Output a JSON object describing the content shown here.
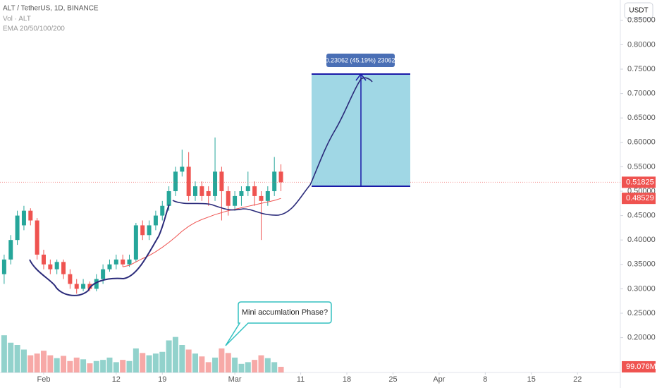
{
  "chart_data": {
    "type": "candlestick",
    "title": "ALT / TetherUS, 1D, BINANCE",
    "indicators": [
      "Vol · ALT",
      "EMA 20/50/100/200"
    ],
    "currency": "USDT",
    "x": [
      -6,
      -5,
      -4,
      -3,
      -2,
      -1,
      0,
      1,
      2,
      3,
      4,
      5,
      6,
      7,
      8,
      9,
      10,
      11,
      12,
      13,
      14,
      15,
      16,
      17,
      18,
      19,
      20,
      21,
      22,
      23,
      24,
      25,
      26,
      27,
      28,
      29,
      30,
      31,
      32,
      33,
      34,
      35,
      36
    ],
    "open": [
      0.33,
      0.36,
      0.4,
      0.43,
      0.46,
      0.44,
      0.37,
      0.35,
      0.34,
      0.355,
      0.33,
      0.31,
      0.3,
      0.31,
      0.3,
      0.32,
      0.34,
      0.35,
      0.36,
      0.35,
      0.36,
      0.43,
      0.41,
      0.43,
      0.45,
      0.47,
      0.5,
      0.54,
      0.55,
      0.49,
      0.51,
      0.5,
      0.49,
      0.54,
      0.5,
      0.47,
      0.49,
      0.5,
      0.51,
      0.49,
      0.48,
      0.5,
      0.54
    ],
    "high": [
      0.37,
      0.41,
      0.46,
      0.47,
      0.465,
      0.445,
      0.38,
      0.36,
      0.36,
      0.36,
      0.34,
      0.32,
      0.32,
      0.315,
      0.33,
      0.35,
      0.36,
      0.37,
      0.37,
      0.37,
      0.435,
      0.44,
      0.44,
      0.46,
      0.48,
      0.51,
      0.55,
      0.585,
      0.58,
      0.52,
      0.52,
      0.51,
      0.61,
      0.55,
      0.51,
      0.5,
      0.51,
      0.54,
      0.52,
      0.5,
      0.51,
      0.57,
      0.555
    ],
    "low": [
      0.31,
      0.35,
      0.39,
      0.42,
      0.43,
      0.36,
      0.34,
      0.33,
      0.33,
      0.32,
      0.3,
      0.29,
      0.295,
      0.295,
      0.295,
      0.31,
      0.335,
      0.34,
      0.345,
      0.345,
      0.355,
      0.4,
      0.4,
      0.42,
      0.44,
      0.46,
      0.49,
      0.53,
      0.48,
      0.48,
      0.48,
      0.47,
      0.48,
      0.44,
      0.45,
      0.46,
      0.47,
      0.49,
      0.47,
      0.4,
      0.47,
      0.49,
      0.5
    ],
    "close": [
      0.36,
      0.4,
      0.45,
      0.46,
      0.44,
      0.37,
      0.35,
      0.34,
      0.355,
      0.33,
      0.31,
      0.3,
      0.31,
      0.3,
      0.32,
      0.34,
      0.35,
      0.36,
      0.35,
      0.36,
      0.43,
      0.41,
      0.43,
      0.45,
      0.47,
      0.5,
      0.54,
      0.55,
      0.49,
      0.51,
      0.49,
      0.49,
      0.54,
      0.5,
      0.47,
      0.49,
      0.5,
      0.51,
      0.49,
      0.48,
      0.5,
      0.54,
      0.51825
    ],
    "close_label": "0.51825",
    "volume": [
      650,
      520,
      480,
      400,
      300,
      330,
      380,
      300,
      250,
      290,
      200,
      260,
      230,
      160,
      200,
      220,
      260,
      180,
      220,
      200,
      420,
      340,
      300,
      330,
      360,
      560,
      620,
      480,
      400,
      330,
      280,
      180,
      260,
      420,
      340,
      260,
      150,
      180,
      220,
      300,
      250,
      180,
      99.076
    ],
    "volume_label": "99.076M",
    "ema": [
      null,
      null,
      null,
      null,
      null,
      null,
      null,
      null,
      null,
      null,
      null,
      null,
      null,
      null,
      null,
      null,
      null,
      null,
      0.345,
      0.348,
      0.355,
      0.362,
      0.368,
      0.376,
      0.385,
      0.395,
      0.406,
      0.418,
      0.428,
      0.436,
      0.442,
      0.447,
      0.452,
      0.456,
      0.46,
      0.463,
      0.466,
      0.469,
      0.472,
      0.475,
      0.478,
      0.481,
      0.48529
    ],
    "ema_label": "0.48529",
    "up_color": "#26a69a",
    "down_color": "#ef5350",
    "ema_color": "#ef5350",
    "ylim": [
      0.1286,
      0.8916
    ],
    "yticks": [
      {
        "value": 0.2,
        "label": "0.20000"
      },
      {
        "value": 0.25,
        "label": "0.25000"
      },
      {
        "value": 0.3,
        "label": "0.30000"
      },
      {
        "value": 0.35,
        "label": "0.35000"
      },
      {
        "value": 0.4,
        "label": "0.40000"
      },
      {
        "value": 0.45,
        "label": "0.45000"
      },
      {
        "value": 0.5,
        "label": "0.50000"
      },
      {
        "value": 0.55,
        "label": "0.55000"
      },
      {
        "value": 0.6,
        "label": "0.60000"
      },
      {
        "value": 0.65,
        "label": "0.65000"
      },
      {
        "value": 0.7,
        "label": "0.70000"
      },
      {
        "value": 0.75,
        "label": "0.75000"
      },
      {
        "value": 0.8,
        "label": "0.80000"
      },
      {
        "value": 0.85,
        "label": "0.85000"
      }
    ],
    "y2lim": [
      0,
      6500
    ],
    "xlim": [
      -6.63,
      87.5
    ],
    "xticks": [
      {
        "value": 0,
        "label": "Feb"
      },
      {
        "value": 11,
        "label": "12"
      },
      {
        "value": 18,
        "label": "19"
      },
      {
        "value": 29,
        "label": "Mar"
      },
      {
        "value": 39,
        "label": "11"
      },
      {
        "value": 46,
        "label": "18"
      },
      {
        "value": 53,
        "label": "25"
      },
      {
        "value": 60,
        "label": "Apr"
      },
      {
        "value": 67,
        "label": "8"
      },
      {
        "value": 74,
        "label": "15"
      },
      {
        "value": 81,
        "label": "22"
      }
    ],
    "grid": false,
    "measure_label": "0.23062 (45.19%) 23062",
    "callout": "Mini accumlation Phase?"
  }
}
